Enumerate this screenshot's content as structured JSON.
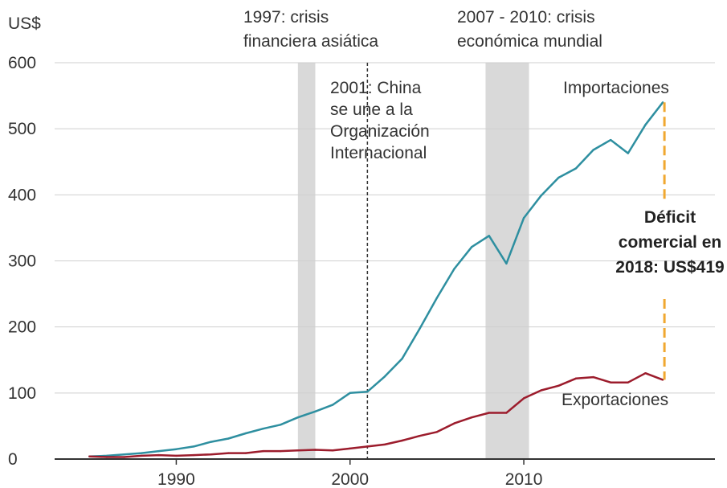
{
  "chart_data": {
    "type": "line",
    "y_unit": "US$",
    "ylim": [
      0,
      600
    ],
    "y_ticks": [
      0,
      100,
      200,
      300,
      400,
      500,
      600
    ],
    "xlim": [
      1983,
      2021
    ],
    "x_ticks": [
      1990,
      2000,
      2010
    ],
    "grid": true,
    "x": [
      1985,
      1986,
      1987,
      1988,
      1989,
      1990,
      1991,
      1992,
      1993,
      1994,
      1995,
      1996,
      1997,
      1998,
      1999,
      2000,
      2001,
      2002,
      2003,
      2004,
      2005,
      2006,
      2007,
      2008,
      2009,
      2010,
      2011,
      2012,
      2013,
      2014,
      2015,
      2016,
      2017,
      2018
    ],
    "series": [
      {
        "name": "Importaciones",
        "color": "#2e8fa0",
        "values": [
          4,
          5,
          7,
          9,
          12,
          15,
          19,
          26,
          31,
          39,
          46,
          52,
          63,
          72,
          82,
          100,
          102,
          125,
          152,
          197,
          244,
          288,
          321,
          338,
          296,
          365,
          399,
          426,
          440,
          468,
          483,
          463,
          506,
          540
        ]
      },
      {
        "name": "Exportaciones",
        "color": "#9c1c2c",
        "values": [
          4,
          3,
          3,
          5,
          6,
          5,
          6,
          7,
          9,
          9,
          12,
          12,
          13,
          14,
          13,
          16,
          19,
          22,
          28,
          35,
          41,
          54,
          63,
          70,
          70,
          92,
          104,
          111,
          122,
          124,
          116,
          116,
          130,
          120
        ]
      }
    ],
    "shaded_periods": [
      {
        "start": 1997,
        "end": 1998,
        "label_lines": [
          "1997: crisis",
          "financiera asiática"
        ]
      },
      {
        "start": 2007.8,
        "end": 2010.3,
        "label_lines": [
          "2007 - 2010: crisis",
          "económica mundial"
        ]
      }
    ],
    "event_line": {
      "x": 2001,
      "label_lines": [
        "2001: China",
        "se une a la",
        "Organización",
        "Internacional"
      ]
    },
    "deficit": {
      "x": 2018,
      "from": 120,
      "to": 540,
      "color": "#f0a830",
      "label_lines": [
        "Déficit",
        "comercial en",
        "2018: US$419"
      ]
    }
  }
}
